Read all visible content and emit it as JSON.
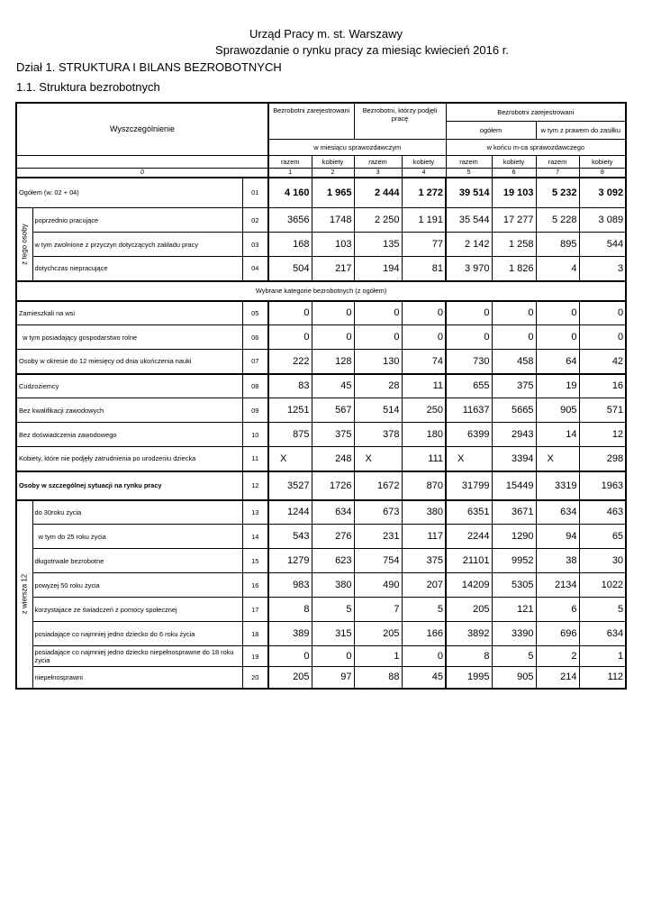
{
  "header": {
    "org": "Urząd Pracy m. st. Warszawy",
    "report": "Sprawozdanie o rynku pracy za miesiąc kwiecień 2016 r.",
    "section": "Dział 1.  STRUKTURA  I  BILANS  BEZROBOTNYCH",
    "subsection": "1.1.  Struktura  bezrobotnych"
  },
  "table": {
    "col_label": "Wyszczególnienie",
    "col_group1": "Bezrobotni zarejestrowani",
    "col_group2": "Bezrobotni, którzy podjęli pracę",
    "col_group3": "Bezrobotni zarejestrowani",
    "col_group3a": "ogółem",
    "col_group3b": "w tym z prawem do zasiłku",
    "period1": "w miesiącu sprawozdawczym",
    "period2": "w końcu m-ca sprawozdawczego",
    "sub_cols": [
      "razem",
      "kobiety",
      "razem",
      "kobiety",
      "razem",
      "kobiety",
      "razem",
      "kobiety"
    ],
    "col_numbers": [
      "0",
      "1",
      "2",
      "3",
      "4",
      "5",
      "6",
      "7",
      "8"
    ],
    "side_label_a": "z tego osoby",
    "side_label_b": "z wiersza 12",
    "section_label": "Wybrane kategorie bezrobotnych (z ogółem)",
    "rows": [
      {
        "code": "01",
        "label": "Ogółem (w. 02 + 04)",
        "values": [
          "4 160",
          "1 965",
          "2 444",
          "1 272",
          "39 514",
          "19 103",
          "5 232",
          "3 092"
        ]
      },
      {
        "code": "02",
        "label": "poprzednio pracujące",
        "values": [
          "3656",
          "1748",
          "2 250",
          "1 191",
          "35 544",
          "17 277",
          "5 228",
          "3 089"
        ]
      },
      {
        "code": "03",
        "label": "w tym zwolnione z przyczyn dotyczących zakładu pracy",
        "values": [
          "168",
          "103",
          "135",
          "77",
          "2 142",
          "1 258",
          "895",
          "544"
        ]
      },
      {
        "code": "04",
        "label": "dotychczas niepracujące",
        "values": [
          "504",
          "217",
          "194",
          "81",
          "3 970",
          "1 826",
          "4",
          "3"
        ]
      },
      {
        "code": "05",
        "label": "Zamieszkali na wsi",
        "values": [
          "0",
          "0",
          "0",
          "0",
          "0",
          "0",
          "0",
          "0"
        ]
      },
      {
        "code": "06",
        "label": "  w tym posiadający gospodarstwo rolne",
        "values": [
          "0",
          "0",
          "0",
          "0",
          "0",
          "0",
          "0",
          "0"
        ]
      },
      {
        "code": "07",
        "label": "Osoby w okresie do 12 miesięcy od dnia ukończenia nauki",
        "values": [
          "222",
          "128",
          "130",
          "74",
          "730",
          "458",
          "64",
          "42"
        ]
      },
      {
        "code": "08",
        "label": "Cudzoziemcy",
        "values": [
          "83",
          "45",
          "28",
          "11",
          "655",
          "375",
          "19",
          "16"
        ]
      },
      {
        "code": "09",
        "label": "Bez kwalifikacji zawodowych",
        "values": [
          "1251",
          "567",
          "514",
          "250",
          "11637",
          "5665",
          "905",
          "571"
        ]
      },
      {
        "code": "10",
        "label": "Bez doświadczenia zawodowego",
        "values": [
          "875",
          "375",
          "378",
          "180",
          "6399",
          "2943",
          "14",
          "12"
        ]
      },
      {
        "code": "11",
        "label": "Kobiety, które nie podjęły zatrudnienia po urodzeniu dziecka",
        "values": [
          "X",
          "248",
          "X",
          "111",
          "X",
          "3394",
          "X",
          "298"
        ]
      },
      {
        "code": "12",
        "label": "Osoby w szczególnej sytuacji na rynku pracy",
        "values": [
          "3527",
          "1726",
          "1672",
          "870",
          "31799",
          "15449",
          "3319",
          "1963"
        ]
      },
      {
        "code": "13",
        "label": "do 30roku życia",
        "values": [
          "1244",
          "634",
          "673",
          "380",
          "6351",
          "3671",
          "634",
          "463"
        ]
      },
      {
        "code": "14",
        "label": "  w tym do 25 roku życia",
        "values": [
          "543",
          "276",
          "231",
          "117",
          "2244",
          "1290",
          "94",
          "65"
        ]
      },
      {
        "code": "15",
        "label": "długotrwale bezrobotne",
        "values": [
          "1279",
          "623",
          "754",
          "375",
          "21101",
          "9952",
          "38",
          "30"
        ]
      },
      {
        "code": "16",
        "label": "powyżej 50 roku życia",
        "values": [
          "983",
          "380",
          "490",
          "207",
          "14209",
          "5305",
          "2134",
          "1022"
        ]
      },
      {
        "code": "17",
        "label": "korzystajace ze świadczeń z pomocy społecznej",
        "values": [
          "8",
          "5",
          "7",
          "5",
          "205",
          "121",
          "6",
          "5"
        ]
      },
      {
        "code": "18",
        "label": "posiadające co najmniej jedno dziecko do 6 roku życia",
        "values": [
          "389",
          "315",
          "205",
          "166",
          "3892",
          "3390",
          "696",
          "634"
        ]
      },
      {
        "code": "19",
        "label": "posiadające co najmniej jedno dziecko niepełnosprawne do 18 roku życia",
        "values": [
          "0",
          "0",
          "1",
          "0",
          "8",
          "5",
          "2",
          "1"
        ]
      },
      {
        "code": "20",
        "label": "niepełnosprawni",
        "values": [
          "205",
          "97",
          "88",
          "45",
          "1995",
          "905",
          "214",
          "112"
        ]
      }
    ]
  }
}
